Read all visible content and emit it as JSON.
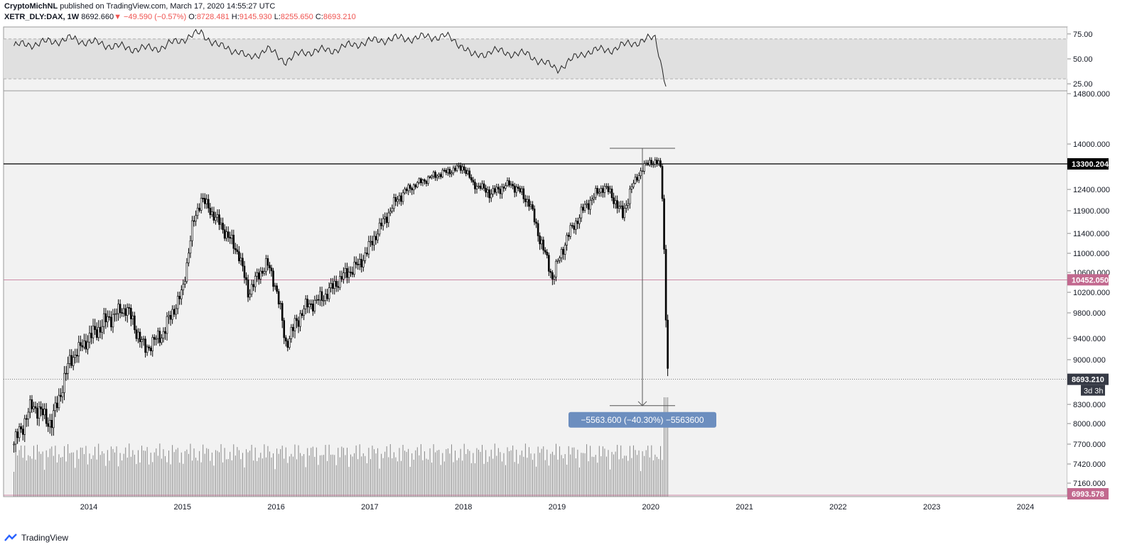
{
  "header": {
    "author": "CryptoMichNL",
    "published_text": "published on TradingView.com, March 17, 2020 14:55:27 UTC",
    "symbol": "XETR_DLY:DAX, 1W",
    "last": "8692.660",
    "change": "−49.590 (−0.57%)",
    "o_label": "O:",
    "o_value": "8728.481",
    "h_label": "H:",
    "h_value": "9145.930",
    "l_label": "L:",
    "l_value": "8255.650",
    "c_label": "C:",
    "c_value": "8693.210"
  },
  "footer": {
    "brand": "TradingView"
  },
  "colors": {
    "background": "#f2f2f2",
    "candle": "#000000",
    "volume": "#888888",
    "rsi_band": "#e0e0e0",
    "pink_level": "#c2698f",
    "measure_box": "#6c8ebf"
  },
  "chart_data": [
    {
      "type": "line",
      "title": "",
      "y_ticks": [
        "75.00",
        "50.00",
        "25.00"
      ],
      "band": [
        30,
        70
      ],
      "ylim": [
        18,
        82
      ],
      "series": [
        {
          "x": [
            2013.2,
            2013.5,
            2013.8,
            2014.0,
            2014.2,
            2014.4,
            2014.6,
            2014.8,
            2015.0,
            2015.2,
            2015.4,
            2015.6,
            2015.7,
            2015.9,
            2016.1,
            2016.3,
            2016.6,
            2016.9,
            2017.2,
            2017.5,
            2017.8,
            2018.0,
            2018.1,
            2018.3,
            2018.5,
            2018.7,
            2018.9,
            2019.0,
            2019.3,
            2019.6,
            2019.8,
            2020.0,
            2020.05,
            2020.1,
            2020.17
          ],
          "y": [
            63,
            66,
            70,
            67,
            64,
            61,
            60,
            62,
            70,
            76,
            62,
            58,
            50,
            60,
            48,
            57,
            59,
            66,
            70,
            71,
            73,
            63,
            52,
            58,
            56,
            54,
            44,
            40,
            57,
            60,
            66,
            70,
            71,
            50,
            21
          ]
        }
      ]
    },
    {
      "type": "candlestick",
      "title": "",
      "x_ticks": [
        "2014",
        "2015",
        "2016",
        "2017",
        "2018",
        "2019",
        "2020",
        "2021",
        "2022",
        "2023",
        "2024"
      ],
      "y_ticks": [
        "14800.000",
        "14000.000",
        "12400.000",
        "11900.000",
        "11400.000",
        "11000.000",
        "10600.000",
        "10200.000",
        "9800.000",
        "9400.000",
        "9000.000",
        "8300.000",
        "8000.000",
        "7700.000",
        "7420.000",
        "7160.000"
      ],
      "series": [
        {
          "x": [
            2013.2,
            2013.4,
            2013.6,
            2013.8,
            2014.0,
            2014.2,
            2014.4,
            2014.6,
            2014.8,
            2015.0,
            2015.1,
            2015.2,
            2015.4,
            2015.6,
            2015.7,
            2015.9,
            2016.0,
            2016.1,
            2016.3,
            2016.5,
            2016.7,
            2016.9,
            2017.1,
            2017.3,
            2017.5,
            2017.7,
            2017.9,
            2018.0,
            2018.1,
            2018.3,
            2018.5,
            2018.7,
            2018.8,
            2018.95,
            2019.1,
            2019.3,
            2019.5,
            2019.6,
            2019.7,
            2019.8,
            2019.9,
            2020.0,
            2020.1,
            2020.13,
            2020.15,
            2020.17,
            2020.19
          ],
          "y": [
            7700,
            8300,
            8000,
            9000,
            9400,
            9700,
            9900,
            9200,
            9500,
            10200,
            11500,
            12200,
            11600,
            11000,
            10200,
            10800,
            10300,
            9300,
            9900,
            10100,
            10500,
            10800,
            11500,
            12200,
            12600,
            12900,
            13100,
            13200,
            12600,
            12300,
            12600,
            12100,
            11400,
            10500,
            11300,
            12000,
            12500,
            12200,
            11800,
            12500,
            13100,
            13400,
            13300,
            12000,
            10500,
            9200,
            8693
          ]
        }
      ],
      "levels": [
        {
          "label": "13300.204",
          "color": "#000000"
        },
        {
          "label": "10452.050",
          "color": "#c2698f"
        },
        {
          "label": "8693.210",
          "color": "#363a45"
        },
        {
          "label": "6993.578",
          "color": "#c2698f"
        }
      ],
      "countdown": "3d 3h",
      "measure_label": "−5563.600 (−40.30%) −5563600"
    }
  ]
}
